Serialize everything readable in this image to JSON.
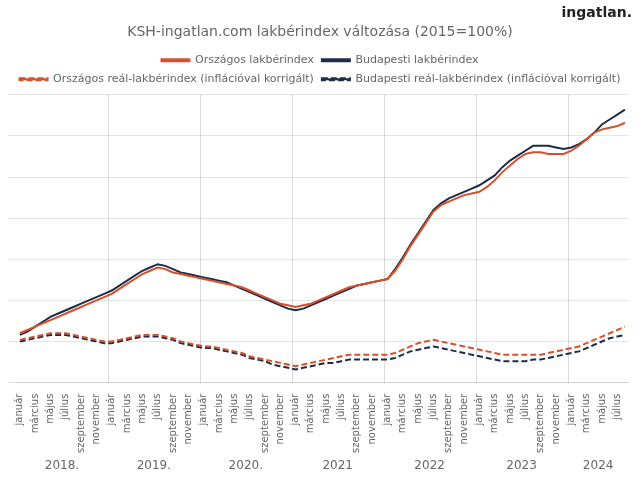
{
  "chart_data": {
    "type": "line",
    "title": "KSH-ingatlan.com lakbérindex változása (2015=100%)",
    "categories": [
      "január",
      null,
      "március",
      null,
      "május",
      null,
      "július",
      null,
      "szeptember",
      null,
      "november",
      null,
      "január",
      null,
      "március",
      null,
      "május",
      null,
      "július",
      null,
      "szeptember",
      null,
      "november",
      null,
      "január",
      null,
      "március",
      null,
      "május",
      null,
      "július",
      null,
      "szeptember",
      null,
      "november",
      null,
      "január",
      null,
      "március",
      null,
      "május",
      null,
      "július",
      null,
      "szeptember",
      null,
      "november",
      null,
      "január",
      null,
      "március",
      null,
      "május",
      null,
      "július",
      null,
      "szeptember",
      null,
      "november",
      null,
      "január",
      null,
      "március",
      null,
      "május",
      null,
      "július",
      null,
      "szeptember",
      null,
      "november",
      null,
      "január",
      null,
      "március",
      null,
      "május",
      null,
      "július",
      null
    ],
    "series": [
      {
        "name": "Országos lakbérindex",
        "color": "#d94f2b",
        "line_style": "solid",
        "values": [
          105,
          107,
          109,
          111,
          113,
          115,
          117,
          119,
          121,
          123,
          125,
          127,
          129,
          132,
          135,
          138,
          141,
          143,
          145,
          144,
          142,
          141,
          140,
          139,
          138,
          137,
          136,
          135,
          134,
          133,
          131,
          129,
          127,
          125,
          123,
          122,
          121,
          122,
          123,
          125,
          127,
          129,
          131,
          133,
          134,
          135,
          136,
          137,
          138,
          143,
          150,
          158,
          165,
          172,
          179,
          183,
          185,
          187,
          189,
          190,
          191,
          194,
          198,
          203,
          207,
          211,
          214,
          215,
          215,
          214,
          214,
          214,
          216,
          219,
          223,
          227,
          229,
          230,
          231,
          233
        ]
      },
      {
        "name": "Budapesti lakbérindex",
        "color": "#1e2d47",
        "line_style": "solid",
        "values": [
          104,
          106,
          109,
          112,
          115,
          117,
          119,
          121,
          123,
          125,
          127,
          129,
          131,
          134,
          137,
          140,
          143,
          145,
          147,
          146,
          144,
          142,
          141,
          140,
          139,
          138,
          137,
          136,
          134,
          132,
          130,
          128,
          126,
          124,
          122,
          120,
          119,
          120,
          122,
          124,
          126,
          128,
          130,
          132,
          134,
          135,
          136,
          137,
          138,
          144,
          151,
          159,
          166,
          173,
          180,
          184,
          187,
          189,
          191,
          193,
          195,
          198,
          201,
          206,
          210,
          213,
          216,
          219,
          219,
          219,
          218,
          217,
          218,
          220,
          223,
          227,
          232,
          235,
          238,
          241
        ]
      },
      {
        "name": "Országos reál-lakbérindex (inflációval korrigált)",
        "color": "#d94f2b",
        "line_style": "dashed",
        "values": [
          101,
          102,
          103,
          104,
          105,
          105,
          105,
          104,
          103,
          102,
          101,
          100,
          100,
          101,
          102,
          103,
          104,
          104,
          104,
          103,
          102,
          100,
          99,
          98,
          97,
          97,
          96,
          95,
          94,
          93,
          91,
          90,
          89,
          88,
          87,
          86,
          85,
          86,
          87,
          88,
          89,
          90,
          91,
          92,
          92,
          92,
          92,
          92,
          92,
          93,
          95,
          97,
          99,
          100,
          101,
          100,
          99,
          98,
          97,
          96,
          95,
          94,
          93,
          92,
          92,
          92,
          92,
          92,
          92,
          93,
          94,
          95,
          96,
          97,
          99,
          101,
          103,
          105,
          107,
          109
        ]
      },
      {
        "name": "Budapesti reál-lakbérindex (inflációval korrigált)",
        "color": "#1e2d47",
        "line_style": "dashed",
        "values": [
          100,
          101,
          102,
          103,
          104,
          104,
          104,
          103,
          102,
          101,
          100,
          99,
          99,
          100,
          101,
          102,
          103,
          103,
          103,
          102,
          101,
          99,
          98,
          97,
          96,
          96,
          95,
          94,
          93,
          92,
          90,
          89,
          88,
          86,
          85,
          84,
          83,
          84,
          85,
          86,
          87,
          87,
          88,
          89,
          89,
          89,
          89,
          89,
          89,
          90,
          92,
          94,
          95,
          96,
          97,
          96,
          95,
          94,
          93,
          92,
          91,
          90,
          89,
          88,
          88,
          88,
          88,
          89,
          89,
          90,
          91,
          92,
          93,
          94,
          96,
          98,
          100,
          102,
          103,
          104
        ]
      }
    ],
    "annotations": [
      {
        "text": "2018.",
        "x": 5.5
      },
      {
        "text": "2019.",
        "x": 17.5
      },
      {
        "text": "2020.",
        "x": 29.5
      },
      {
        "text": "2021",
        "x": 41.5
      },
      {
        "text": "2022",
        "x": 53.5
      },
      {
        "text": "2023",
        "x": 65.5
      },
      {
        "text": "2024",
        "x": 75.5
      },
      {
        "text": "ingatlan."
      }
    ],
    "ylim": [
      75,
      250
    ],
    "yticks": [
      75,
      100,
      125,
      150,
      175,
      200,
      225,
      250
    ],
    "grid": true,
    "legend": "top",
    "tick_labels": "x"
  }
}
